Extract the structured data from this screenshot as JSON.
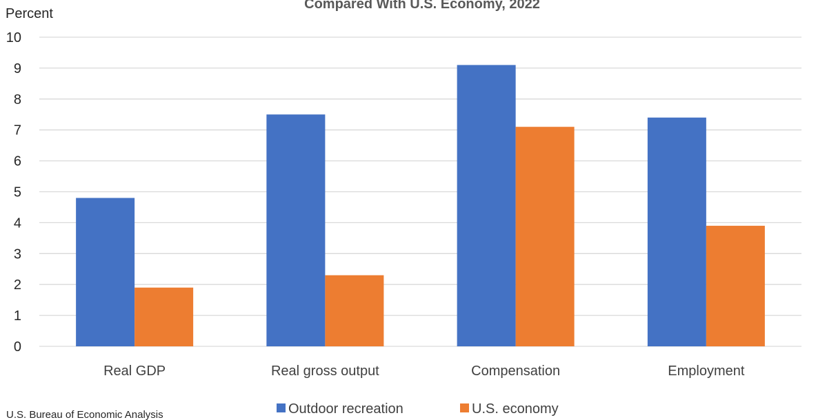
{
  "chart_data": {
    "type": "bar",
    "title": "Compared With U.S. Economy, 2022",
    "ylabel": "Percent",
    "xlabel": "",
    "ylim": [
      0,
      10
    ],
    "yticks": [
      0,
      1,
      2,
      3,
      4,
      5,
      6,
      7,
      8,
      9,
      10
    ],
    "categories": [
      "Real GDP",
      "Real gross output",
      "Compensation",
      "Employment"
    ],
    "series": [
      {
        "name": "Outdoor recreation",
        "values": [
          4.8,
          7.5,
          9.1,
          7.4
        ],
        "color": "#4472C4"
      },
      {
        "name": "U.S. economy",
        "values": [
          1.9,
          2.3,
          7.1,
          3.9
        ],
        "color": "#ED7D31"
      }
    ],
    "grid": true,
    "legend": "bottom-center"
  },
  "source": "U.S. Bureau of Economic Analysis"
}
